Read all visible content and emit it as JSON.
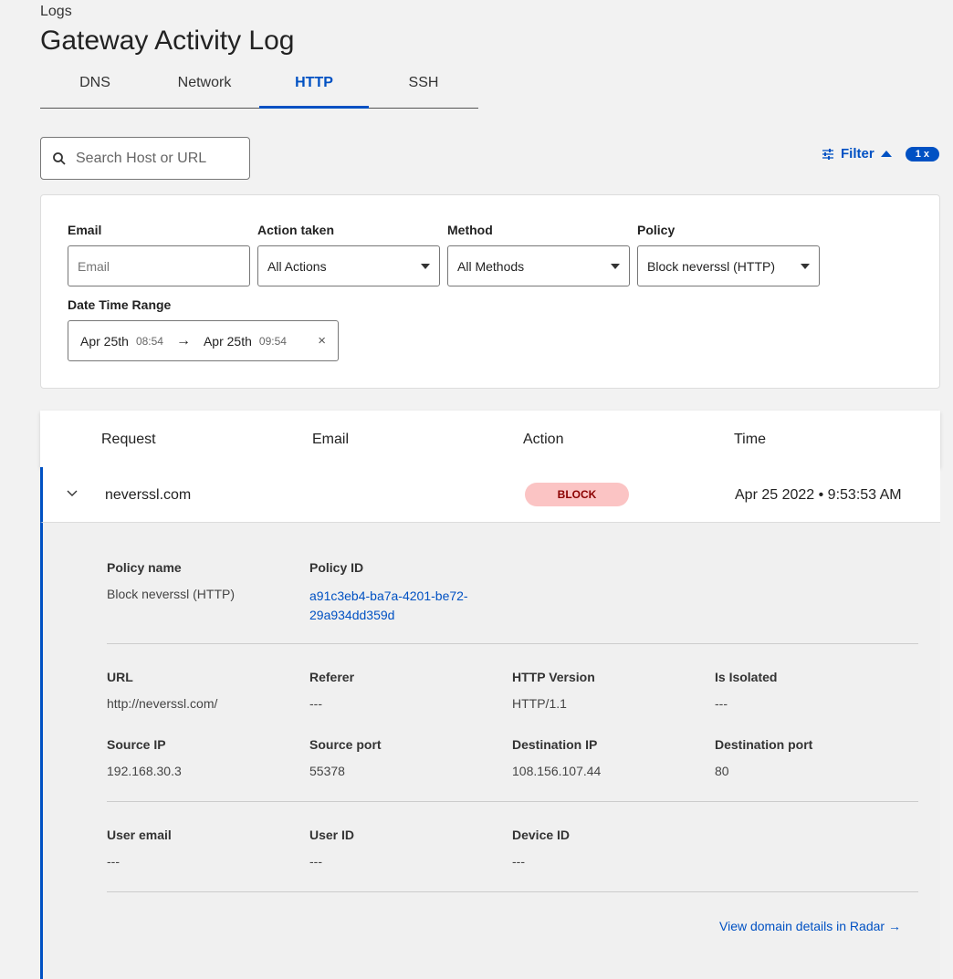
{
  "breadcrumb": "Logs",
  "title": "Gateway Activity Log",
  "tabs": [
    {
      "label": "DNS"
    },
    {
      "label": "Network"
    },
    {
      "label": "HTTP",
      "active": true
    },
    {
      "label": "SSH"
    }
  ],
  "search": {
    "placeholder": "Search Host or URL",
    "icon": "search-icon"
  },
  "filter": {
    "label": "Filter",
    "count": "1 x"
  },
  "filters": {
    "email": {
      "label": "Email",
      "placeholder": "Email"
    },
    "action": {
      "label": "Action taken",
      "value": "All Actions"
    },
    "method": {
      "label": "Method",
      "value": "All Methods"
    },
    "policy": {
      "label": "Policy",
      "value": "Block neverssl (HTTP)"
    },
    "date": {
      "label": "Date Time Range",
      "from_date": "Apr 25th",
      "from_time": "08:54",
      "to_date": "Apr 25th",
      "to_time": "09:54"
    }
  },
  "table": {
    "columns": [
      "Request",
      "Email",
      "Action",
      "Time"
    ],
    "row": {
      "request": "neverssl.com",
      "email": "",
      "action": "BLOCK",
      "time": "Apr 25 2022 • 9:53:53 AM"
    }
  },
  "details": {
    "policy_name_label": "Policy name",
    "policy_name": "Block neverssl (HTTP)",
    "policy_id_label": "Policy ID",
    "policy_id_1": "a91c3eb4-ba7a-4201-be72-",
    "policy_id_2": "29a934dd359d",
    "fields": [
      {
        "label": "URL",
        "value": "http://neverssl.com/"
      },
      {
        "label": "Referer",
        "value": "---"
      },
      {
        "label": "HTTP Version",
        "value": "HTTP/1.1"
      },
      {
        "label": "Is Isolated",
        "value": "---"
      },
      {
        "label": "Source IP",
        "value": "192.168.30.3"
      },
      {
        "label": "Source port",
        "value": "55378"
      },
      {
        "label": "Destination IP",
        "value": "108.156.107.44"
      },
      {
        "label": "Destination port",
        "value": "80"
      },
      {
        "label": "User email",
        "value": "---"
      },
      {
        "label": "User ID",
        "value": "---"
      },
      {
        "label": "Device ID",
        "value": "---"
      }
    ],
    "radar_link": "View domain details in Radar →"
  },
  "colors": {
    "accent": "#0051c3",
    "block_bg": "#fbc4c4",
    "block_text": "#8b0000"
  }
}
